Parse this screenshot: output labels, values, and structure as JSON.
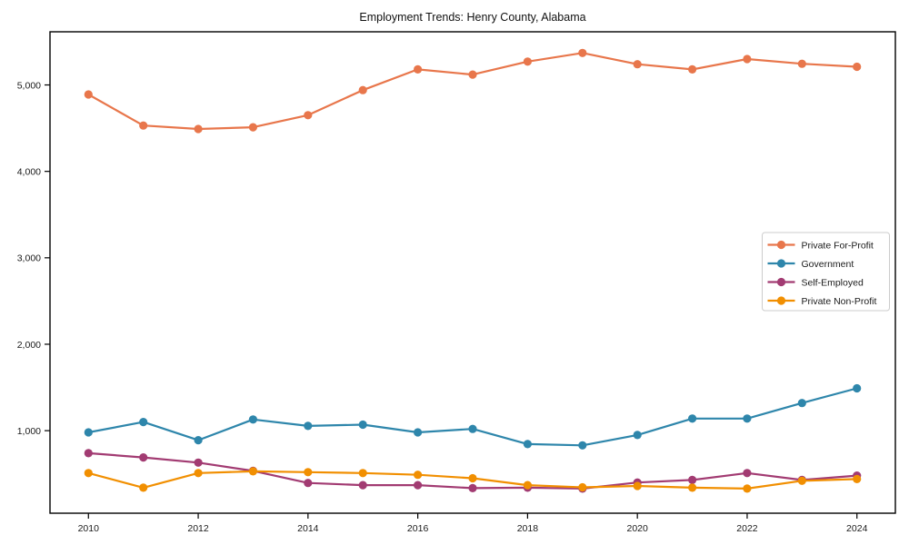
{
  "chart": {
    "title": "Employment Trends: Henry County, Alabama",
    "background_color": "#ffffff",
    "spine_color": "#000000",
    "legend_border_color": "#cccccc"
  },
  "chart_data": {
    "type": "line",
    "title": "Employment Trends: Henry County, Alabama",
    "xlabel": "",
    "ylabel": "",
    "grid": false,
    "legend_position": "center-right",
    "x": [
      2010,
      2011,
      2012,
      2013,
      2014,
      2015,
      2016,
      2017,
      2018,
      2019,
      2020,
      2021,
      2022,
      2023,
      2024
    ],
    "xticks": [
      2010,
      2012,
      2014,
      2016,
      2018,
      2020,
      2022,
      2024
    ],
    "yticks": [
      1000,
      2000,
      3000,
      4000,
      5000
    ],
    "ytick_labels": [
      "1,000",
      "2,000",
      "3,000",
      "4,000",
      "5,000"
    ],
    "ylim": [
      45,
      5615
    ],
    "xlim": [
      2009.3,
      2024.7
    ],
    "series": [
      {
        "name": "Private For-Profit",
        "color": "#E8764B",
        "values": [
          4890,
          4530,
          4490,
          4510,
          4650,
          4940,
          5180,
          5120,
          5270,
          5370,
          5240,
          5180,
          5300,
          5245,
          5210
        ]
      },
      {
        "name": "Government",
        "color": "#2E86AB",
        "values": [
          980,
          1100,
          890,
          1130,
          1055,
          1070,
          980,
          1020,
          845,
          830,
          950,
          1140,
          1140,
          1320,
          1490
        ]
      },
      {
        "name": "Self-Employed",
        "color": "#A23B72",
        "values": [
          740,
          690,
          630,
          535,
          395,
          370,
          370,
          335,
          340,
          330,
          400,
          430,
          510,
          430,
          480
        ]
      },
      {
        "name": "Private Non-Profit",
        "color": "#F18F01",
        "values": [
          510,
          340,
          510,
          530,
          520,
          510,
          490,
          450,
          370,
          345,
          360,
          340,
          330,
          420,
          440
        ]
      }
    ]
  }
}
